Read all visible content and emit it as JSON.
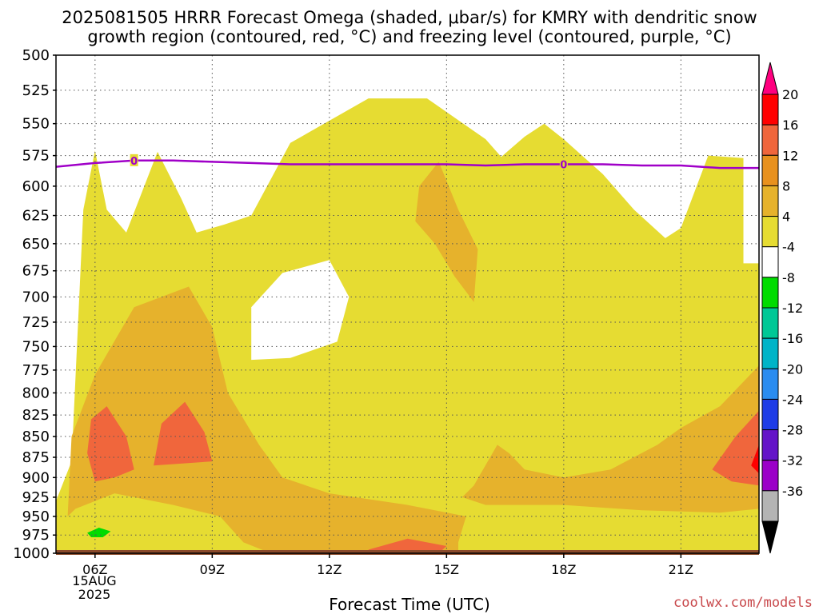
{
  "title_line1": "2025081505 HRRR Forecast Omega (shaded, μbar/s) for KMRY with dendritic snow",
  "title_line2": "growth region (contoured, red, °C) and freezing level (contoured, purple, °C)",
  "x_axis_title": "Forecast Time (UTC)",
  "credit": "coolwx.com/models",
  "date_line1": "15AUG",
  "date_line2": "2025",
  "chart_data": {
    "type": "heatmap",
    "title": "2025081505 HRRR Forecast Omega (shaded, μbar/s) for KMRY with dendritic snow growth region (contoured, red, °C) and freezing level (contoured, purple, °C)",
    "xlabel": "Forecast Time (UTC)",
    "ylabel": "",
    "x_ticks": [
      "06Z",
      "09Z",
      "12Z",
      "15Z",
      "18Z",
      "21Z"
    ],
    "x_range_hours": [
      5,
      23
    ],
    "y_ticks": [
      500,
      525,
      550,
      575,
      600,
      625,
      650,
      675,
      700,
      725,
      750,
      775,
      800,
      825,
      850,
      875,
      900,
      925,
      950,
      975,
      1000
    ],
    "y_range": [
      500,
      1000
    ],
    "y_log_scale": true,
    "grid": true,
    "colorbar_levels": [
      20,
      16,
      12,
      8,
      4,
      -4,
      -8,
      -12,
      -16,
      -20,
      -24,
      -28,
      -32,
      -36
    ],
    "colorbar_colors": [
      "#ff0000",
      "#f0663c",
      "#e8911e",
      "#e6b22c",
      "#e6dc32",
      "#ffffff",
      "#00dc00",
      "#00c896",
      "#00b4c8",
      "#2a8cf0",
      "#1e3ce6",
      "#6414c8",
      "#9b00c8",
      "#b4b4b4"
    ],
    "colorbar_top_color": "#ff007f",
    "colorbar_bottom_color": "#000000",
    "freezing_level": {
      "label": "0",
      "color": "#a000c8",
      "points": [
        [
          5,
          584
        ],
        [
          6,
          581
        ],
        [
          7,
          579
        ],
        [
          8,
          579
        ],
        [
          9,
          580
        ],
        [
          10,
          581
        ],
        [
          11,
          582
        ],
        [
          12,
          582
        ],
        [
          13,
          582
        ],
        [
          14,
          582
        ],
        [
          15,
          582
        ],
        [
          16,
          583
        ],
        [
          17,
          582
        ],
        [
          18,
          582
        ],
        [
          19,
          582
        ],
        [
          20,
          583
        ],
        [
          21,
          583
        ],
        [
          22,
          585
        ],
        [
          23,
          585
        ]
      ]
    },
    "omega_regions": [
      {
        "level": "4 to 8",
        "color": "#e6dc32",
        "points": [
          [
            5.0,
            1000
          ],
          [
            5.0,
            930
          ],
          [
            5.4,
            880
          ],
          [
            5.7,
            620
          ],
          [
            6.0,
            571
          ],
          [
            6.3,
            620
          ],
          [
            6.8,
            640
          ],
          [
            7.6,
            572
          ],
          [
            8.2,
            610
          ],
          [
            8.6,
            640
          ],
          [
            9.3,
            633
          ],
          [
            10.0,
            625
          ],
          [
            11.0,
            565
          ],
          [
            13.0,
            531
          ],
          [
            14.5,
            531
          ],
          [
            16.0,
            562
          ],
          [
            16.4,
            576
          ],
          [
            17.0,
            560
          ],
          [
            17.5,
            550
          ],
          [
            18.0,
            562
          ],
          [
            19.0,
            590
          ],
          [
            19.8,
            620
          ],
          [
            20.6,
            645
          ],
          [
            21.0,
            636
          ],
          [
            21.7,
            575
          ],
          [
            22.6,
            577
          ],
          [
            22.6,
            668
          ],
          [
            23.0,
            668
          ],
          [
            23.0,
            1000
          ]
        ]
      },
      {
        "level": "hole",
        "color": "#ffffff",
        "points": [
          [
            10.0,
            710
          ],
          [
            10.8,
            677
          ],
          [
            12.0,
            665
          ],
          [
            12.5,
            700
          ],
          [
            12.2,
            745
          ],
          [
            11.0,
            762
          ],
          [
            10.0,
            764
          ]
        ]
      },
      {
        "level": "8 to 12",
        "color": "#e6b22c",
        "points": [
          [
            5.3,
            950
          ],
          [
            5.4,
            850
          ],
          [
            6.0,
            780
          ],
          [
            7.0,
            710
          ],
          [
            8.4,
            690
          ],
          [
            9.0,
            730
          ],
          [
            9.4,
            800
          ],
          [
            10.2,
            860
          ],
          [
            10.8,
            900
          ],
          [
            12.0,
            920
          ],
          [
            14.0,
            935
          ],
          [
            15.5,
            950
          ],
          [
            15.3,
            985
          ],
          [
            15.3,
            1000
          ],
          [
            10.5,
            1000
          ],
          [
            9.8,
            985
          ],
          [
            9.2,
            950
          ],
          [
            8.0,
            935
          ],
          [
            6.5,
            920
          ],
          [
            5.5,
            940
          ]
        ]
      },
      {
        "level": "8 to 12",
        "color": "#e6b22c",
        "points": [
          [
            14.3,
            600
          ],
          [
            14.8,
            580
          ],
          [
            15.3,
            620
          ],
          [
            15.8,
            655
          ],
          [
            15.7,
            705
          ],
          [
            15.2,
            680
          ],
          [
            14.7,
            650
          ],
          [
            14.2,
            630
          ]
        ]
      },
      {
        "level": "8 to 12",
        "color": "#e6b22c",
        "points": [
          [
            15.4,
            925
          ],
          [
            15.7,
            910
          ],
          [
            16.3,
            860
          ],
          [
            16.6,
            870
          ],
          [
            17.0,
            890
          ],
          [
            18.0,
            900
          ],
          [
            19.2,
            890
          ],
          [
            20.4,
            860
          ],
          [
            21.0,
            840
          ],
          [
            22.0,
            815
          ],
          [
            23.0,
            770
          ],
          [
            23.0,
            940
          ],
          [
            22.0,
            945
          ],
          [
            20.0,
            942
          ],
          [
            18.0,
            935
          ],
          [
            16.0,
            935
          ]
        ]
      },
      {
        "level": "12 to 16",
        "color": "#f0663c",
        "points": [
          [
            5.9,
            830
          ],
          [
            6.3,
            815
          ],
          [
            6.8,
            850
          ],
          [
            7.0,
            890
          ],
          [
            6.5,
            900
          ],
          [
            6.0,
            905
          ],
          [
            5.8,
            870
          ]
        ]
      },
      {
        "level": "12 to 16",
        "color": "#f0663c",
        "points": [
          [
            7.5,
            885
          ],
          [
            7.7,
            835
          ],
          [
            8.3,
            810
          ],
          [
            8.8,
            845
          ],
          [
            9.0,
            880
          ]
        ]
      },
      {
        "level": "12 to 16",
        "color": "#f0663c",
        "points": [
          [
            13.0,
            995
          ],
          [
            14.0,
            980
          ],
          [
            15.0,
            990
          ],
          [
            14.8,
            1000
          ],
          [
            13.0,
            1000
          ]
        ]
      },
      {
        "level": "12 to 16",
        "color": "#f0663c",
        "points": [
          [
            21.8,
            890
          ],
          [
            22.4,
            850
          ],
          [
            23.0,
            820
          ],
          [
            23.0,
            910
          ],
          [
            22.3,
            905
          ]
        ]
      },
      {
        "level": "16 to 20",
        "color": "#ff0000",
        "points": [
          [
            22.8,
            885
          ],
          [
            23.0,
            860
          ],
          [
            23.0,
            895
          ]
        ]
      },
      {
        "level": "-8 to -4",
        "color": "#00dc00",
        "points": [
          [
            5.8,
            972
          ],
          [
            6.1,
            965
          ],
          [
            6.4,
            970
          ],
          [
            6.2,
            978
          ],
          [
            5.9,
            978
          ]
        ]
      }
    ]
  }
}
